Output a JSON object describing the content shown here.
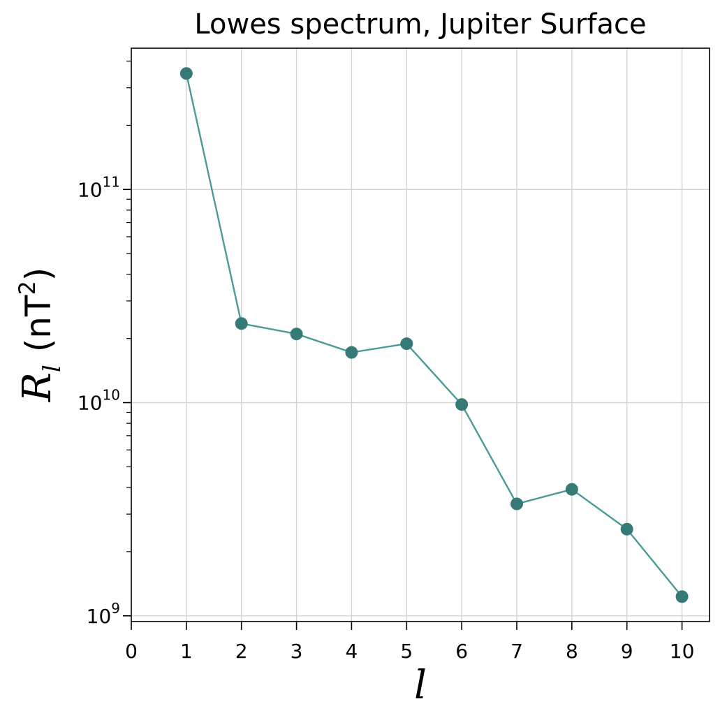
{
  "chart_data": {
    "type": "line",
    "title": "Lowes spectrum, Jupiter  Surface",
    "xlabel": "l",
    "ylabel": {
      "symbol": "R",
      "subscript": "l",
      "unit_open": "(nT",
      "unit_power": "2",
      "unit_close": ")"
    },
    "yscale": "log",
    "xlim": [
      0,
      10.5
    ],
    "ylim": [
      940000000.0,
      460000000000.0
    ],
    "grid": true,
    "x_ticks": [
      0,
      1,
      2,
      3,
      4,
      5,
      6,
      7,
      8,
      9,
      10
    ],
    "x_tick_labels": [
      "0",
      "1",
      "2",
      "3",
      "4",
      "5",
      "6",
      "7",
      "8",
      "9",
      "10"
    ],
    "y_ticks": [
      {
        "value": 1000000000.0,
        "base": "10",
        "exp": "9"
      },
      {
        "value": 10000000000.0,
        "base": "10",
        "exp": "10"
      },
      {
        "value": 100000000000.0,
        "base": "10",
        "exp": "11"
      }
    ],
    "series": [
      {
        "line_color": "#4a9a96",
        "marker_color": "#357a77",
        "x": [
          1,
          2,
          3,
          4,
          5,
          6,
          7,
          8,
          9,
          10
        ],
        "values": [
          350000000000.0,
          23500000000.0,
          21000000000.0,
          17200000000.0,
          18900000000.0,
          9800000000.0,
          3350000000.0,
          3920000000.0,
          2550000000.0,
          1230000000.0
        ]
      }
    ]
  }
}
